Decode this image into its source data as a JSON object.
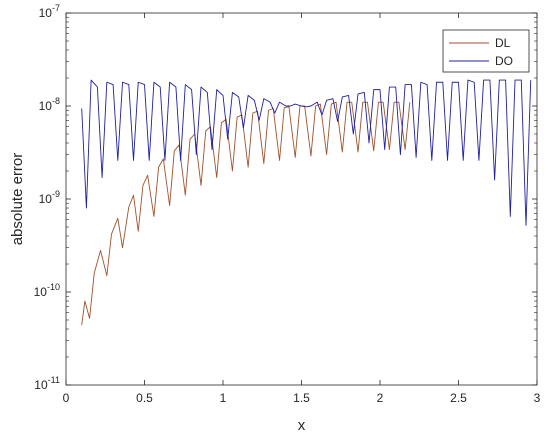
{
  "chart_data": {
    "type": "line",
    "title": "",
    "xlabel": "x",
    "ylabel": "absolute error",
    "xlim": [
      0,
      3
    ],
    "ylim": [
      1e-11,
      1e-07
    ],
    "yscale": "log",
    "grid": false,
    "legend_position": "top-right",
    "x_ticks": [
      0,
      0.5,
      1,
      1.5,
      2,
      2.5,
      3
    ],
    "x_tick_labels": [
      "0",
      "0.5",
      "1",
      "1.5",
      "2",
      "2.5",
      "3"
    ],
    "y_ticks": [
      1e-11,
      1e-10,
      1e-09,
      1e-08,
      1e-07
    ],
    "y_tick_labels": [
      {
        "base": "10",
        "exp": "-11"
      },
      {
        "base": "10",
        "exp": "-10"
      },
      {
        "base": "10",
        "exp": "-9"
      },
      {
        "base": "10",
        "exp": "-8"
      },
      {
        "base": "10",
        "exp": "-7"
      }
    ],
    "series": [
      {
        "name": "DL",
        "color": "#a0522d",
        "x": [
          0.1,
          0.12,
          0.15,
          0.18,
          0.22,
          0.26,
          0.29,
          0.33,
          0.36,
          0.4,
          0.43,
          0.46,
          0.49,
          0.52,
          0.56,
          0.59,
          0.62,
          0.66,
          0.69,
          0.72,
          0.76,
          0.79,
          0.82,
          0.86,
          0.89,
          0.92,
          0.96,
          0.99,
          1.02,
          1.06,
          1.09,
          1.12,
          1.16,
          1.19,
          1.22,
          1.26,
          1.29,
          1.32,
          1.36,
          1.39,
          1.42,
          1.46,
          1.49,
          1.52,
          1.56,
          1.59,
          1.62,
          1.66,
          1.69,
          1.72,
          1.76,
          1.79,
          1.82,
          1.86,
          1.89,
          1.92,
          1.96,
          1.99,
          2.02,
          2.06,
          2.09,
          2.12,
          2.16,
          2.19
        ],
        "y": [
          4.4e-11,
          8e-11,
          5.2e-11,
          1.6e-10,
          2.8e-10,
          1.5e-10,
          4.2e-10,
          6.2e-10,
          3e-10,
          8.2e-10,
          1.1e-09,
          4.5e-10,
          1.4e-09,
          1.8e-09,
          6.5e-10,
          2.2e-09,
          2.7e-09,
          8.5e-10,
          3.3e-09,
          3.8e-09,
          1.1e-09,
          4.4e-09,
          5e-09,
          1.4e-09,
          5.4e-09,
          6e-09,
          1.7e-09,
          6.6e-09,
          7.2e-09,
          2e-09,
          7.6e-09,
          8e-09,
          2.2e-09,
          8.4e-09,
          8.8e-09,
          2.4e-09,
          9e-09,
          9.4e-09,
          2.6e-09,
          9.6e-09,
          9.8e-09,
          2.8e-09,
          1e-08,
          1e-08,
          2.9e-09,
          1e-08,
          1.05e-08,
          3e-09,
          1.05e-08,
          1.1e-08,
          3.2e-09,
          1.1e-08,
          1.1e-08,
          3.2e-09,
          1.1e-08,
          1.1e-08,
          3.3e-09,
          1.1e-08,
          1.1e-08,
          3.4e-09,
          1.1e-08,
          1.1e-08,
          3.4e-09,
          1.1e-08
        ]
      },
      {
        "name": "DO",
        "color": "#2020a0",
        "x": [
          0.1,
          0.13,
          0.16,
          0.2,
          0.23,
          0.26,
          0.3,
          0.33,
          0.36,
          0.4,
          0.43,
          0.46,
          0.5,
          0.53,
          0.56,
          0.6,
          0.63,
          0.66,
          0.7,
          0.73,
          0.76,
          0.8,
          0.83,
          0.86,
          0.9,
          0.93,
          0.96,
          1.0,
          1.03,
          1.06,
          1.1,
          1.13,
          1.16,
          1.2,
          1.23,
          1.26,
          1.3,
          1.33,
          1.36,
          1.4,
          1.43,
          1.46,
          1.5,
          1.53,
          1.56,
          1.6,
          1.63,
          1.66,
          1.7,
          1.73,
          1.76,
          1.8,
          1.83,
          1.86,
          1.9,
          1.93,
          1.96,
          2.0,
          2.03,
          2.06,
          2.1,
          2.13,
          2.16,
          2.2,
          2.23,
          2.26,
          2.3,
          2.33,
          2.36,
          2.4,
          2.43,
          2.46,
          2.5,
          2.53,
          2.56,
          2.6,
          2.63,
          2.66,
          2.7,
          2.73,
          2.76,
          2.8,
          2.83,
          2.86,
          2.9,
          2.93,
          2.96
        ],
        "y": [
          9.4e-09,
          8e-10,
          1.9e-08,
          1.6e-08,
          1.7e-09,
          1.8e-08,
          1.7e-08,
          2.6e-09,
          1.8e-08,
          1.7e-08,
          2.6e-09,
          1.8e-08,
          1.7e-08,
          2.6e-09,
          1.8e-08,
          1.6e-08,
          2.6e-09,
          1.8e-08,
          1.6e-08,
          2.6e-09,
          1.7e-08,
          1.5e-08,
          3e-09,
          1.6e-08,
          1.4e-08,
          3.4e-09,
          1.5e-08,
          1.3e-08,
          4.4e-09,
          1.4e-08,
          1.25e-08,
          5.8e-09,
          1.3e-08,
          1.15e-08,
          7e-09,
          1.2e-08,
          1.1e-08,
          8.4e-09,
          1.1e-08,
          1e-08,
          1e-08,
          1.05e-08,
          1e-08,
          9.8e-09,
          1e-08,
          1.1e-08,
          8e-09,
          1.15e-08,
          1.2e-08,
          6.8e-09,
          1.25e-08,
          1.3e-08,
          5e-09,
          1.35e-08,
          1.4e-08,
          4e-09,
          1.5e-08,
          1.5e-08,
          3.4e-09,
          1.6e-08,
          1.6e-08,
          3e-09,
          1.7e-08,
          1.7e-08,
          2.8e-09,
          1.8e-08,
          1.7e-08,
          2.6e-09,
          1.8e-08,
          1.8e-08,
          2.6e-09,
          1.8e-08,
          1.8e-08,
          2.6e-09,
          1.9e-08,
          1.8e-08,
          2.6e-09,
          1.9e-08,
          1.9e-08,
          1.6e-09,
          1.9e-08,
          1.9e-08,
          6.5e-10,
          1.9e-08,
          1.9e-08,
          5.2e-10,
          1.9e-08
        ]
      }
    ]
  }
}
